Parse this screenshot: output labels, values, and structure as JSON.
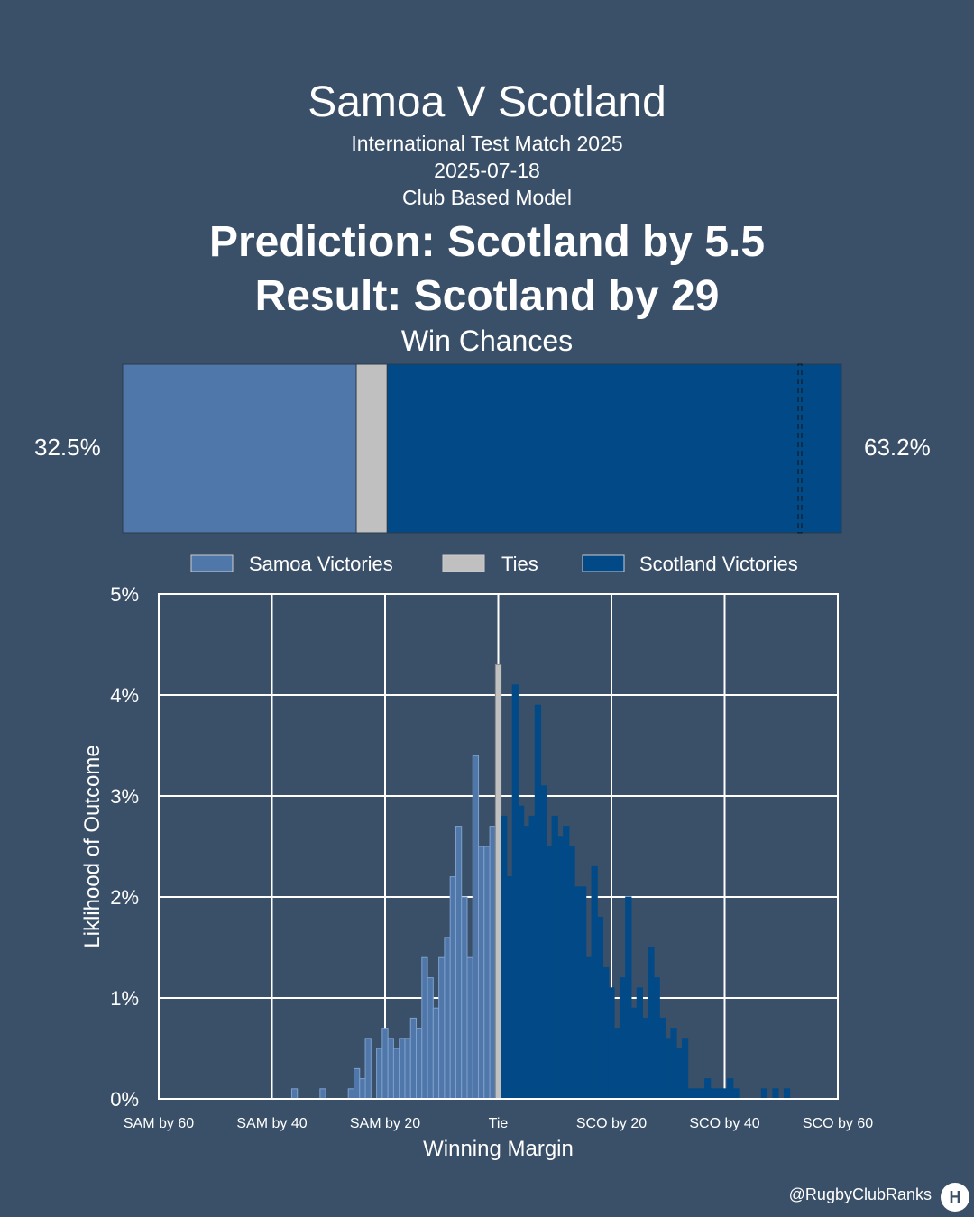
{
  "header": {
    "title": "Samoa V Scotland",
    "subtitle1": "International Test Match 2025",
    "subtitle2": "2025-07-18",
    "subtitle3": "Club Based Model",
    "prediction": "Prediction: Scotland by 5.5",
    "result": "Result: Scotland by 29",
    "win_chances_label": "Win Chances"
  },
  "footer": {
    "handle": "@RugbyClubRanks",
    "logo_glyph": "H"
  },
  "colors": {
    "background": "#3a5068",
    "samoa": "#5077aa",
    "tie": "#c0c0c0",
    "scotland": "#024a87"
  },
  "chart_data": [
    {
      "type": "bar",
      "orientation": "horizontal-stacked",
      "title": "Win Chances",
      "segments": [
        {
          "name": "Samoa Victories",
          "value": 32.5
        },
        {
          "name": "Ties",
          "value": 4.3
        },
        {
          "name": "Scotland Victories",
          "value": 63.2
        }
      ],
      "left_label": "32.5%",
      "right_label": "63.2%",
      "result_marker_margin": 29,
      "legend": [
        "Samoa Victories",
        "Ties",
        "Scotland Victories"
      ],
      "legend_placement": "bottom"
    },
    {
      "type": "bar",
      "title": "",
      "xlabel": "Winning Margin",
      "ylabel": "Liklihood of Outcome",
      "xlim": [
        -60,
        60
      ],
      "ylim": [
        0,
        5
      ],
      "grid": true,
      "y_ticks": [
        "0%",
        "1%",
        "2%",
        "3%",
        "4%",
        "5%"
      ],
      "x_ticks": [
        {
          "value": -60,
          "label": "SAM by 60"
        },
        {
          "value": -40,
          "label": "SAM by 40"
        },
        {
          "value": -20,
          "label": "SAM by 20"
        },
        {
          "value": 0,
          "label": "Tie"
        },
        {
          "value": 20,
          "label": "SCO by 20"
        },
        {
          "value": 40,
          "label": "SCO by 40"
        },
        {
          "value": 60,
          "label": "SCO by 60"
        }
      ],
      "series": [
        {
          "name": "Samoa Victories",
          "points": [
            [
              -36,
              0.1
            ],
            [
              -31,
              0.1
            ],
            [
              -26,
              0.1
            ],
            [
              -25,
              0.3
            ],
            [
              -24,
              0.2
            ],
            [
              -23,
              0.6
            ],
            [
              -21,
              0.5
            ],
            [
              -20,
              0.7
            ],
            [
              -19,
              0.6
            ],
            [
              -18,
              0.5
            ],
            [
              -17,
              0.6
            ],
            [
              -16,
              0.6
            ],
            [
              -15,
              0.8
            ],
            [
              -14,
              0.7
            ],
            [
              -13,
              1.4
            ],
            [
              -12,
              1.2
            ],
            [
              -11,
              0.9
            ],
            [
              -10,
              1.4
            ],
            [
              -9,
              1.6
            ],
            [
              -8,
              2.2
            ],
            [
              -7,
              2.7
            ],
            [
              -6,
              2.0
            ],
            [
              -5,
              1.4
            ],
            [
              -4,
              3.4
            ],
            [
              -3,
              2.5
            ],
            [
              -2,
              2.5
            ],
            [
              -1,
              2.7
            ]
          ]
        },
        {
          "name": "Ties",
          "points": [
            [
              0,
              4.3
            ]
          ]
        },
        {
          "name": "Scotland Victories",
          "points": [
            [
              1,
              2.8
            ],
            [
              2,
              2.2
            ],
            [
              3,
              4.1
            ],
            [
              4,
              2.9
            ],
            [
              5,
              2.7
            ],
            [
              6,
              2.8
            ],
            [
              7,
              3.9
            ],
            [
              8,
              3.1
            ],
            [
              9,
              2.5
            ],
            [
              10,
              2.8
            ],
            [
              11,
              2.6
            ],
            [
              12,
              2.7
            ],
            [
              13,
              2.5
            ],
            [
              14,
              2.1
            ],
            [
              15,
              2.1
            ],
            [
              16,
              1.4
            ],
            [
              17,
              2.3
            ],
            [
              18,
              1.8
            ],
            [
              19,
              1.3
            ],
            [
              20,
              1.1
            ],
            [
              21,
              0.7
            ],
            [
              22,
              1.2
            ],
            [
              23,
              2.0
            ],
            [
              24,
              0.9
            ],
            [
              25,
              1.1
            ],
            [
              26,
              0.8
            ],
            [
              27,
              1.5
            ],
            [
              28,
              1.2
            ],
            [
              29,
              0.8
            ],
            [
              30,
              0.6
            ],
            [
              31,
              0.7
            ],
            [
              32,
              0.5
            ],
            [
              33,
              0.6
            ],
            [
              34,
              0.1
            ],
            [
              35,
              0.1
            ],
            [
              36,
              0.1
            ],
            [
              37,
              0.2
            ],
            [
              38,
              0.1
            ],
            [
              39,
              0.1
            ],
            [
              40,
              0.1
            ],
            [
              41,
              0.2
            ],
            [
              42,
              0.1
            ],
            [
              47,
              0.1
            ],
            [
              49,
              0.1
            ],
            [
              51,
              0.1
            ]
          ]
        }
      ]
    }
  ]
}
